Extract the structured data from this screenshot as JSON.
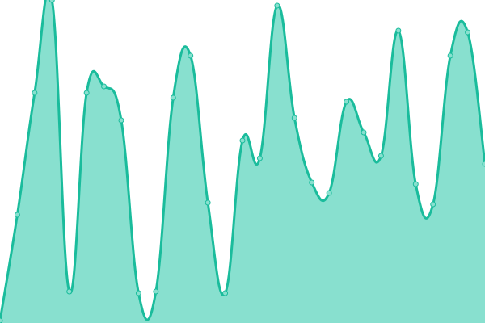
{
  "chart_data": {
    "type": "area",
    "title": "",
    "xlabel": "",
    "ylabel": "",
    "x": [
      0,
      1,
      2,
      3,
      4,
      5,
      6,
      7,
      8,
      9,
      10,
      11,
      12,
      13,
      14,
      15,
      16,
      17,
      18,
      19,
      20,
      21,
      22,
      23,
      24,
      25,
      26,
      27,
      28
    ],
    "values": [
      3,
      134,
      285,
      400,
      39,
      285,
      293,
      251,
      37,
      39,
      279,
      331,
      149,
      37,
      226,
      204,
      393,
      254,
      174,
      161,
      274,
      236,
      207,
      362,
      172,
      147,
      331,
      360,
      197
    ],
    "ylim": [
      0,
      400
    ],
    "grid": false,
    "axes_visible": false,
    "smooth": true,
    "colors": {
      "line": "#1abc9c",
      "fill": "#88e0cf",
      "marker": "#88e0cf"
    }
  }
}
